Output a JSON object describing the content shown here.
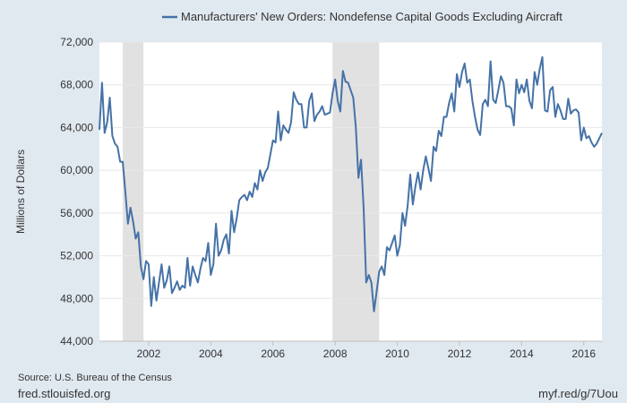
{
  "chart_data": {
    "type": "line",
    "title": "",
    "ylabel": "Millions of Dollars",
    "xlabel": "",
    "ylim": [
      44000,
      72000
    ],
    "xlim": [
      "2000-06",
      "2016-08"
    ],
    "y_ticks": [
      44000,
      48000,
      52000,
      56000,
      60000,
      64000,
      68000,
      72000
    ],
    "y_tick_labels": [
      "44,000",
      "48,000",
      "52,000",
      "56,000",
      "60,000",
      "64,000",
      "68,000",
      "72,000"
    ],
    "x_ticks": [
      "2002",
      "2004",
      "2006",
      "2008",
      "2010",
      "2012",
      "2014",
      "2016"
    ],
    "grid": "horizontal",
    "legend_position": "top",
    "recessions": [
      {
        "start": "2001-03",
        "end": "2001-11"
      },
      {
        "start": "2007-12",
        "end": "2009-06"
      }
    ],
    "series": [
      {
        "name": "Manufacturers' New Orders: Nondefense Capital Goods Excluding Aircraft",
        "color": "#4572a7",
        "points": [
          [
            "2000-06",
            63800
          ],
          [
            "2000-07",
            68200
          ],
          [
            "2000-08",
            63500
          ],
          [
            "2000-09",
            64500
          ],
          [
            "2000-10",
            66800
          ],
          [
            "2000-11",
            63200
          ],
          [
            "2000-12",
            62500
          ],
          [
            "2001-01",
            62200
          ],
          [
            "2001-02",
            60800
          ],
          [
            "2001-03",
            60800
          ],
          [
            "2001-04",
            58000
          ],
          [
            "2001-05",
            55000
          ],
          [
            "2001-06",
            56500
          ],
          [
            "2001-07",
            55200
          ],
          [
            "2001-08",
            53600
          ],
          [
            "2001-09",
            54200
          ],
          [
            "2001-10",
            51000
          ],
          [
            "2001-11",
            49800
          ],
          [
            "2001-12",
            51500
          ],
          [
            "2002-01",
            51200
          ],
          [
            "2002-02",
            47300
          ],
          [
            "2002-03",
            50000
          ],
          [
            "2002-04",
            47800
          ],
          [
            "2002-05",
            49500
          ],
          [
            "2002-06",
            51200
          ],
          [
            "2002-07",
            49000
          ],
          [
            "2002-08",
            49700
          ],
          [
            "2002-09",
            51000
          ],
          [
            "2002-10",
            48500
          ],
          [
            "2002-11",
            49000
          ],
          [
            "2002-12",
            49600
          ],
          [
            "2003-01",
            48800
          ],
          [
            "2003-02",
            49200
          ],
          [
            "2003-03",
            49000
          ],
          [
            "2003-04",
            51800
          ],
          [
            "2003-05",
            49200
          ],
          [
            "2003-06",
            51000
          ],
          [
            "2003-07",
            50200
          ],
          [
            "2003-08",
            49500
          ],
          [
            "2003-09",
            50800
          ],
          [
            "2003-10",
            51800
          ],
          [
            "2003-11",
            51500
          ],
          [
            "2003-12",
            53200
          ],
          [
            "2004-01",
            50200
          ],
          [
            "2004-02",
            51200
          ],
          [
            "2004-03",
            55000
          ],
          [
            "2004-04",
            52000
          ],
          [
            "2004-05",
            52500
          ],
          [
            "2004-06",
            53500
          ],
          [
            "2004-07",
            54000
          ],
          [
            "2004-08",
            52200
          ],
          [
            "2004-09",
            56200
          ],
          [
            "2004-10",
            54200
          ],
          [
            "2004-11",
            55500
          ],
          [
            "2004-12",
            57200
          ],
          [
            "2005-01",
            57500
          ],
          [
            "2005-02",
            57700
          ],
          [
            "2005-03",
            57200
          ],
          [
            "2005-04",
            58000
          ],
          [
            "2005-05",
            57500
          ],
          [
            "2005-06",
            58800
          ],
          [
            "2005-07",
            58200
          ],
          [
            "2005-08",
            60000
          ],
          [
            "2005-09",
            59000
          ],
          [
            "2005-10",
            59800
          ],
          [
            "2005-11",
            60200
          ],
          [
            "2005-12",
            61500
          ],
          [
            "2006-01",
            62800
          ],
          [
            "2006-02",
            62600
          ],
          [
            "2006-03",
            65500
          ],
          [
            "2006-04",
            62800
          ],
          [
            "2006-05",
            64200
          ],
          [
            "2006-06",
            63800
          ],
          [
            "2006-07",
            63500
          ],
          [
            "2006-08",
            64500
          ],
          [
            "2006-09",
            67300
          ],
          [
            "2006-10",
            66600
          ],
          [
            "2006-11",
            66200
          ],
          [
            "2006-12",
            66200
          ],
          [
            "2007-01",
            64000
          ],
          [
            "2007-02",
            64000
          ],
          [
            "2007-03",
            66500
          ],
          [
            "2007-04",
            67200
          ],
          [
            "2007-05",
            64600
          ],
          [
            "2007-06",
            65200
          ],
          [
            "2007-07",
            65500
          ],
          [
            "2007-08",
            66000
          ],
          [
            "2007-09",
            65200
          ],
          [
            "2007-10",
            65300
          ],
          [
            "2007-11",
            65400
          ],
          [
            "2007-12",
            67200
          ],
          [
            "2008-01",
            68500
          ],
          [
            "2008-02",
            66500
          ],
          [
            "2008-03",
            65500
          ],
          [
            "2008-04",
            69300
          ],
          [
            "2008-05",
            68300
          ],
          [
            "2008-06",
            68200
          ],
          [
            "2008-07",
            67500
          ],
          [
            "2008-08",
            66800
          ],
          [
            "2008-09",
            64000
          ],
          [
            "2008-10",
            59300
          ],
          [
            "2008-11",
            61000
          ],
          [
            "2008-12",
            56500
          ],
          [
            "2009-01",
            49500
          ],
          [
            "2009-02",
            50200
          ],
          [
            "2009-03",
            49500
          ],
          [
            "2009-04",
            46800
          ],
          [
            "2009-05",
            48600
          ],
          [
            "2009-06",
            50500
          ],
          [
            "2009-07",
            51000
          ],
          [
            "2009-08",
            50200
          ],
          [
            "2009-09",
            52800
          ],
          [
            "2009-10",
            52500
          ],
          [
            "2009-11",
            53200
          ],
          [
            "2009-12",
            53900
          ],
          [
            "2010-01",
            52000
          ],
          [
            "2010-02",
            53000
          ],
          [
            "2010-03",
            56000
          ],
          [
            "2010-04",
            54800
          ],
          [
            "2010-05",
            56700
          ],
          [
            "2010-06",
            59600
          ],
          [
            "2010-07",
            56800
          ],
          [
            "2010-08",
            58500
          ],
          [
            "2010-09",
            59800
          ],
          [
            "2010-10",
            58200
          ],
          [
            "2010-11",
            60000
          ],
          [
            "2010-12",
            61300
          ],
          [
            "2011-01",
            60200
          ],
          [
            "2011-02",
            59000
          ],
          [
            "2011-03",
            62200
          ],
          [
            "2011-04",
            61800
          ],
          [
            "2011-05",
            63700
          ],
          [
            "2011-06",
            63200
          ],
          [
            "2011-07",
            65000
          ],
          [
            "2011-08",
            65000
          ],
          [
            "2011-09",
            66300
          ],
          [
            "2011-10",
            67200
          ],
          [
            "2011-11",
            65500
          ],
          [
            "2011-12",
            69000
          ],
          [
            "2012-01",
            67800
          ],
          [
            "2012-02",
            69200
          ],
          [
            "2012-03",
            70000
          ],
          [
            "2012-04",
            68200
          ],
          [
            "2012-05",
            68500
          ],
          [
            "2012-06",
            66500
          ],
          [
            "2012-07",
            65000
          ],
          [
            "2012-08",
            63800
          ],
          [
            "2012-09",
            63300
          ],
          [
            "2012-10",
            66200
          ],
          [
            "2012-11",
            66600
          ],
          [
            "2012-12",
            66000
          ],
          [
            "2013-01",
            70200
          ],
          [
            "2013-02",
            66600
          ],
          [
            "2013-03",
            66300
          ],
          [
            "2013-04",
            67500
          ],
          [
            "2013-05",
            68800
          ],
          [
            "2013-06",
            68200
          ],
          [
            "2013-07",
            66000
          ],
          [
            "2013-08",
            66000
          ],
          [
            "2013-09",
            65800
          ],
          [
            "2013-10",
            64200
          ],
          [
            "2013-11",
            68500
          ],
          [
            "2013-12",
            67200
          ],
          [
            "2014-01",
            68000
          ],
          [
            "2014-02",
            67300
          ],
          [
            "2014-03",
            68500
          ],
          [
            "2014-04",
            66500
          ],
          [
            "2014-05",
            65800
          ],
          [
            "2014-06",
            69200
          ],
          [
            "2014-07",
            68000
          ],
          [
            "2014-08",
            69500
          ],
          [
            "2014-09",
            70600
          ],
          [
            "2014-10",
            65600
          ],
          [
            "2014-11",
            65500
          ],
          [
            "2014-12",
            67500
          ],
          [
            "2015-01",
            67800
          ],
          [
            "2015-02",
            65000
          ],
          [
            "2015-03",
            66200
          ],
          [
            "2015-04",
            65600
          ],
          [
            "2015-05",
            64800
          ],
          [
            "2015-06",
            64800
          ],
          [
            "2015-07",
            66700
          ],
          [
            "2015-08",
            65300
          ],
          [
            "2015-09",
            65600
          ],
          [
            "2015-10",
            65700
          ],
          [
            "2015-11",
            65400
          ],
          [
            "2015-12",
            62800
          ],
          [
            "2016-01",
            64000
          ],
          [
            "2016-02",
            63000
          ],
          [
            "2016-03",
            63200
          ],
          [
            "2016-04",
            62600
          ],
          [
            "2016-05",
            62200
          ],
          [
            "2016-06",
            62500
          ],
          [
            "2016-07",
            63000
          ],
          [
            "2016-08",
            63500
          ]
        ]
      }
    ]
  },
  "footer": {
    "source": "Source: U.S. Bureau of the Census",
    "site": "fred.stlouisfed.org",
    "shortlink": "myf.red/g/7Uou"
  }
}
